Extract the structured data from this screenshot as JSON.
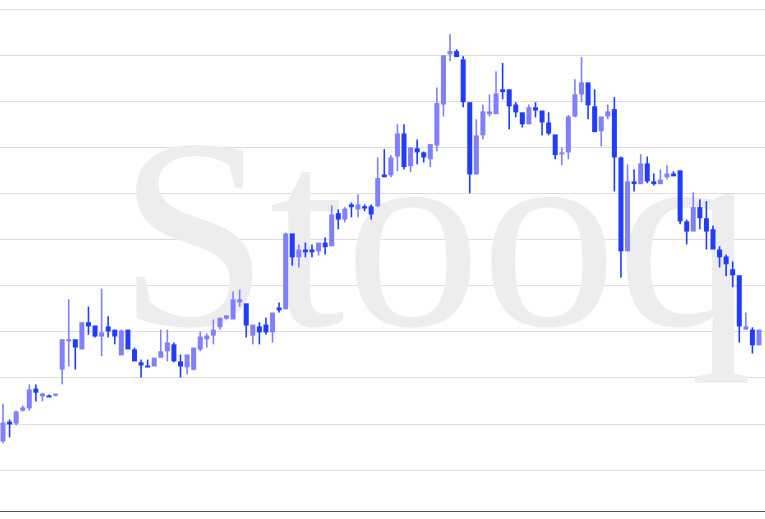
{
  "watermark": "Stooq",
  "chart_data": {
    "type": "candlestick",
    "title": "",
    "xlabel": "",
    "ylabel": "",
    "ylim": [
      -0.9,
      10.2
    ],
    "grid": true,
    "gridlines": [
      0,
      1,
      2,
      3,
      4,
      5,
      6,
      7,
      8,
      9,
      10
    ],
    "colors": {
      "up": "#7f7fff",
      "down": "#1f3cff",
      "grid": "#dddddd",
      "axis": "#555555",
      "watermark": "#ededed"
    },
    "ohlc_order": [
      "open",
      "high",
      "low",
      "close"
    ],
    "candles": [
      [
        0.61,
        1.43,
        0.57,
        1.02
      ],
      [
        1.04,
        1.09,
        0.7,
        0.98
      ],
      [
        1.0,
        1.28,
        0.96,
        1.26
      ],
      [
        1.28,
        1.39,
        1.26,
        1.35
      ],
      [
        1.33,
        1.85,
        1.28,
        1.74
      ],
      [
        1.76,
        1.85,
        1.48,
        1.67
      ],
      [
        1.59,
        1.67,
        1.48,
        1.65
      ],
      [
        1.61,
        1.63,
        1.57,
        1.59
      ],
      [
        1.61,
        1.65,
        1.59,
        1.65
      ],
      [
        2.17,
        2.83,
        1.85,
        2.83
      ],
      [
        2.8,
        3.7,
        2.24,
        2.83
      ],
      [
        2.83,
        2.83,
        2.17,
        2.65
      ],
      [
        2.61,
        3.2,
        2.61,
        3.2
      ],
      [
        3.2,
        3.54,
        2.93,
        3.11
      ],
      [
        3.13,
        3.13,
        2.87,
        2.89
      ],
      [
        2.89,
        3.93,
        2.46,
        2.98
      ],
      [
        3.11,
        3.33,
        2.87,
        3.0
      ],
      [
        3.04,
        3.04,
        2.72,
        2.89
      ],
      [
        2.48,
        3.04,
        2.48,
        3.02
      ],
      [
        3.04,
        3.04,
        2.61,
        2.61
      ],
      [
        2.61,
        2.65,
        2.35,
        2.35
      ],
      [
        2.33,
        2.39,
        2.0,
        2.26
      ],
      [
        2.26,
        2.39,
        2.22,
        2.22
      ],
      [
        2.24,
        2.43,
        2.24,
        2.43
      ],
      [
        2.43,
        3.04,
        2.43,
        2.57
      ],
      [
        2.57,
        3.04,
        2.35,
        2.76
      ],
      [
        2.72,
        2.76,
        2.33,
        2.35
      ],
      [
        2.35,
        2.5,
        2.0,
        2.24
      ],
      [
        2.22,
        2.5,
        2.07,
        2.5
      ],
      [
        2.17,
        2.65,
        2.15,
        2.65
      ],
      [
        2.61,
        3.0,
        2.57,
        2.89
      ],
      [
        2.83,
        2.96,
        2.65,
        2.91
      ],
      [
        2.91,
        3.26,
        2.72,
        3.04
      ],
      [
        3.09,
        3.3,
        3.04,
        3.3
      ],
      [
        3.28,
        3.35,
        3.26,
        3.35
      ],
      [
        3.26,
        3.87,
        3.26,
        3.7
      ],
      [
        3.63,
        3.91,
        3.54,
        3.7
      ],
      [
        3.61,
        3.61,
        2.87,
        3.13
      ],
      [
        2.91,
        3.15,
        2.72,
        3.15
      ],
      [
        3.11,
        3.2,
        2.72,
        2.98
      ],
      [
        3.15,
        3.3,
        2.93,
        2.98
      ],
      [
        2.98,
        3.41,
        2.76,
        3.41
      ],
      [
        3.52,
        3.63,
        3.41,
        3.46
      ],
      [
        3.48,
        5.15,
        3.48,
        5.13
      ],
      [
        5.13,
        5.13,
        4.43,
        4.61
      ],
      [
        4.61,
        4.89,
        4.39,
        4.78
      ],
      [
        4.78,
        4.93,
        4.61,
        4.72
      ],
      [
        4.78,
        4.89,
        4.61,
        4.72
      ],
      [
        4.74,
        4.93,
        4.65,
        4.93
      ],
      [
        4.93,
        5.04,
        4.67,
        4.83
      ],
      [
        4.85,
        5.74,
        4.85,
        5.54
      ],
      [
        5.57,
        5.65,
        5.22,
        5.43
      ],
      [
        5.43,
        5.7,
        5.37,
        5.67
      ],
      [
        5.76,
        5.8,
        5.48,
        5.7
      ],
      [
        5.65,
        5.98,
        5.48,
        5.76
      ],
      [
        5.72,
        5.76,
        5.61,
        5.67
      ],
      [
        5.72,
        5.76,
        5.43,
        5.54
      ],
      [
        5.72,
        6.78,
        5.7,
        6.33
      ],
      [
        6.41,
        6.96,
        6.35,
        6.35
      ],
      [
        6.39,
        6.83,
        6.35,
        6.78
      ],
      [
        6.8,
        7.5,
        6.48,
        7.3
      ],
      [
        7.3,
        7.5,
        6.52,
        6.57
      ],
      [
        6.59,
        7.0,
        6.46,
        7.0
      ],
      [
        6.98,
        7.17,
        6.63,
        6.89
      ],
      [
        6.89,
        6.91,
        6.67,
        6.78
      ],
      [
        6.74,
        7.07,
        6.57,
        7.07
      ],
      [
        7.04,
        8.3,
        6.91,
        7.96
      ],
      [
        7.93,
        9.0,
        7.67,
        9.0
      ],
      [
        9.02,
        9.46,
        8.87,
        9.09
      ],
      [
        9.09,
        9.13,
        8.96,
        8.96
      ],
      [
        8.91,
        8.98,
        7.87,
        7.98
      ],
      [
        7.98,
        7.98,
        6.0,
        6.41
      ],
      [
        6.41,
        7.61,
        6.41,
        7.26
      ],
      [
        7.26,
        7.93,
        7.17,
        7.78
      ],
      [
        7.72,
        8.15,
        7.67,
        7.78
      ],
      [
        7.72,
        8.65,
        7.72,
        8.17
      ],
      [
        8.26,
        8.83,
        8.04,
        8.2
      ],
      [
        8.26,
        8.26,
        7.39,
        7.89
      ],
      [
        7.93,
        7.98,
        7.65,
        7.76
      ],
      [
        7.76,
        7.76,
        7.43,
        7.5
      ],
      [
        7.5,
        7.93,
        7.5,
        7.87
      ],
      [
        7.87,
        7.98,
        7.65,
        7.8
      ],
      [
        7.8,
        7.8,
        7.26,
        7.54
      ],
      [
        7.54,
        7.76,
        7.26,
        7.3
      ],
      [
        7.28,
        7.28,
        6.74,
        6.83
      ],
      [
        6.85,
        7.0,
        6.61,
        6.89
      ],
      [
        6.89,
        7.7,
        6.74,
        7.67
      ],
      [
        7.67,
        8.48,
        7.65,
        8.15
      ],
      [
        8.15,
        8.96,
        7.98,
        8.41
      ],
      [
        8.41,
        8.41,
        7.61,
        7.91
      ],
      [
        7.89,
        8.26,
        7.33,
        7.33
      ],
      [
        7.35,
        7.67,
        7.02,
        7.67
      ],
      [
        7.67,
        7.93,
        7.61,
        7.78
      ],
      [
        7.83,
        8.09,
        6.04,
        6.78
      ],
      [
        6.78,
        6.8,
        4.17,
        4.74
      ],
      [
        4.74,
        6.63,
        4.74,
        6.26
      ],
      [
        6.26,
        6.52,
        6.04,
        6.2
      ],
      [
        6.2,
        6.85,
        6.2,
        6.65
      ],
      [
        6.65,
        6.8,
        6.22,
        6.26
      ],
      [
        6.26,
        6.43,
        6.17,
        6.2
      ],
      [
        6.2,
        6.52,
        6.2,
        6.3
      ],
      [
        6.35,
        6.61,
        6.3,
        6.43
      ],
      [
        6.43,
        6.48,
        6.37,
        6.37
      ],
      [
        6.5,
        6.5,
        5.33,
        5.39
      ],
      [
        5.39,
        5.43,
        4.89,
        5.17
      ],
      [
        5.17,
        6.02,
        5.17,
        5.7
      ],
      [
        5.7,
        5.87,
        5.22,
        5.46
      ],
      [
        5.46,
        5.83,
        4.78,
        5.17
      ],
      [
        5.22,
        5.3,
        4.78,
        4.78
      ],
      [
        4.78,
        4.85,
        4.39,
        4.61
      ],
      [
        4.63,
        4.67,
        4.2,
        4.46
      ],
      [
        4.35,
        4.52,
        3.96,
        4.22
      ],
      [
        4.22,
        4.22,
        2.76,
        3.11
      ],
      [
        3.04,
        3.41,
        3.04,
        3.11
      ],
      [
        3.04,
        3.09,
        2.52,
        2.7
      ],
      [
        2.7,
        3.04,
        2.7,
        3.04
      ]
    ]
  }
}
